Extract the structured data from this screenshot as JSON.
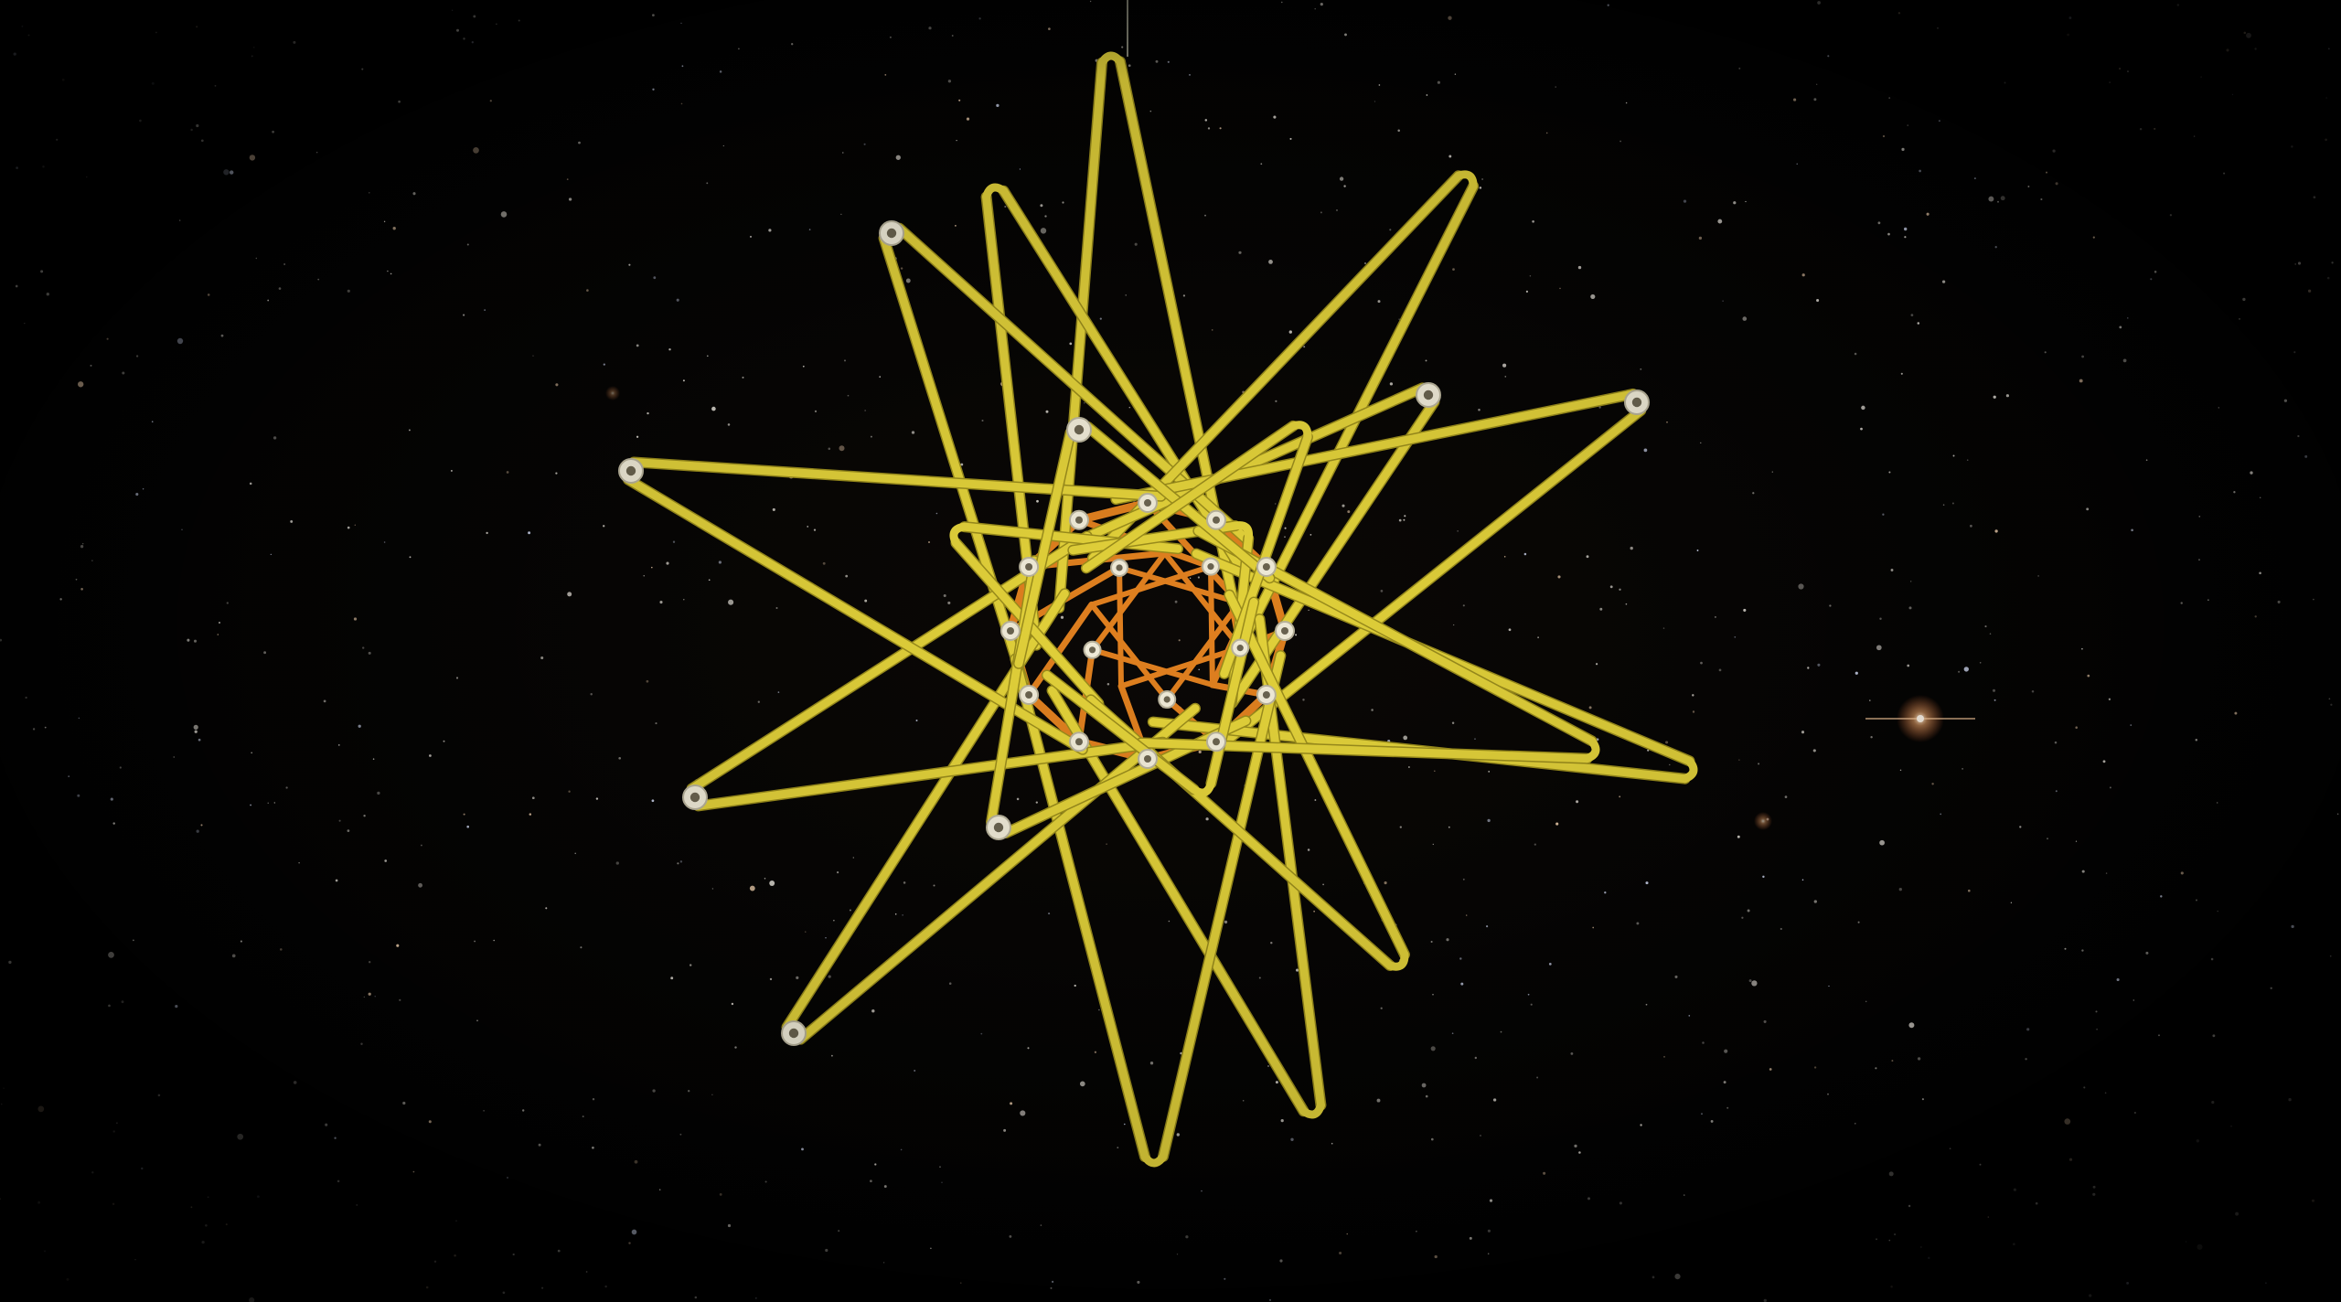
{
  "scene": {
    "subject": "star-ornament",
    "background": "starfield",
    "colors": {
      "space": "#000000",
      "outer_struts": "#e3d23a",
      "outer_struts_shadow": "#9b8d1c",
      "inner_struts": "#e0801f",
      "connectors": "#f1ecd9",
      "hanging_thread": "#8a8a7a",
      "bright_star": "#ffcfa0"
    }
  }
}
